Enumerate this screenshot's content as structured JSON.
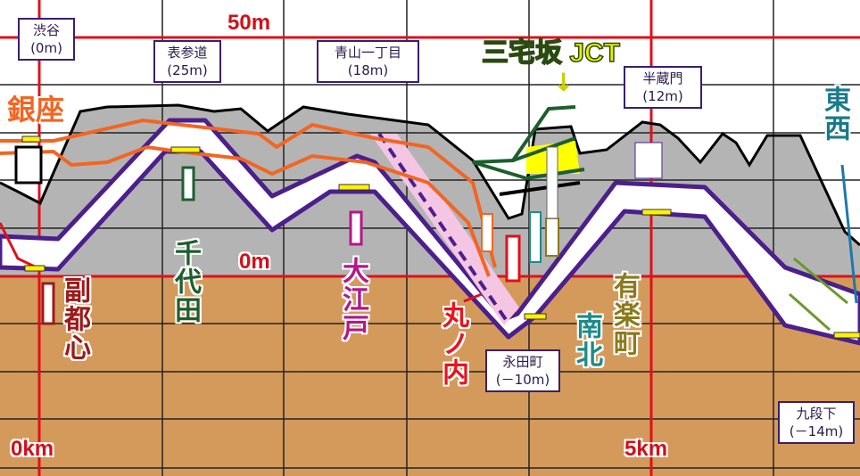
{
  "axes": {
    "y_top": "50m",
    "y_zero": "0m",
    "x_start": "0km",
    "x_mid": "5km"
  },
  "stations": [
    {
      "name": "渋谷",
      "elev": "(0m)"
    },
    {
      "name": "表参道",
      "elev": "(25m)"
    },
    {
      "name": "青山一丁目",
      "elev": "(18m)"
    },
    {
      "name": "半蔵門",
      "elev": "(12m)"
    },
    {
      "name": "永田町",
      "elev": "(－10m)"
    },
    {
      "name": "九段下",
      "elev": "(－14m)"
    }
  ],
  "junction": {
    "label": "三宅坂 JCT",
    "arrow": "↓"
  },
  "lines": [
    {
      "name": "銀座",
      "color": "#f26522"
    },
    {
      "name": "副都心",
      "color": "#9c1a1a"
    },
    {
      "name": "千代田",
      "color": "#1d5e2e"
    },
    {
      "name": "大江戸",
      "color": "#b5168a"
    },
    {
      "name": "丸ノ内",
      "color": "#e8141c"
    },
    {
      "name": "南北",
      "color": "#1c8a8a"
    },
    {
      "name": "有楽町",
      "color": "#8a7a1c"
    },
    {
      "name": "東西",
      "color": "#1a7aa8"
    }
  ],
  "colors": {
    "ground": "#d49a5c",
    "surface_fill": "#b4b4b4",
    "hanzomon": "#4b1f8c",
    "grid_major": "#e0101a"
  }
}
